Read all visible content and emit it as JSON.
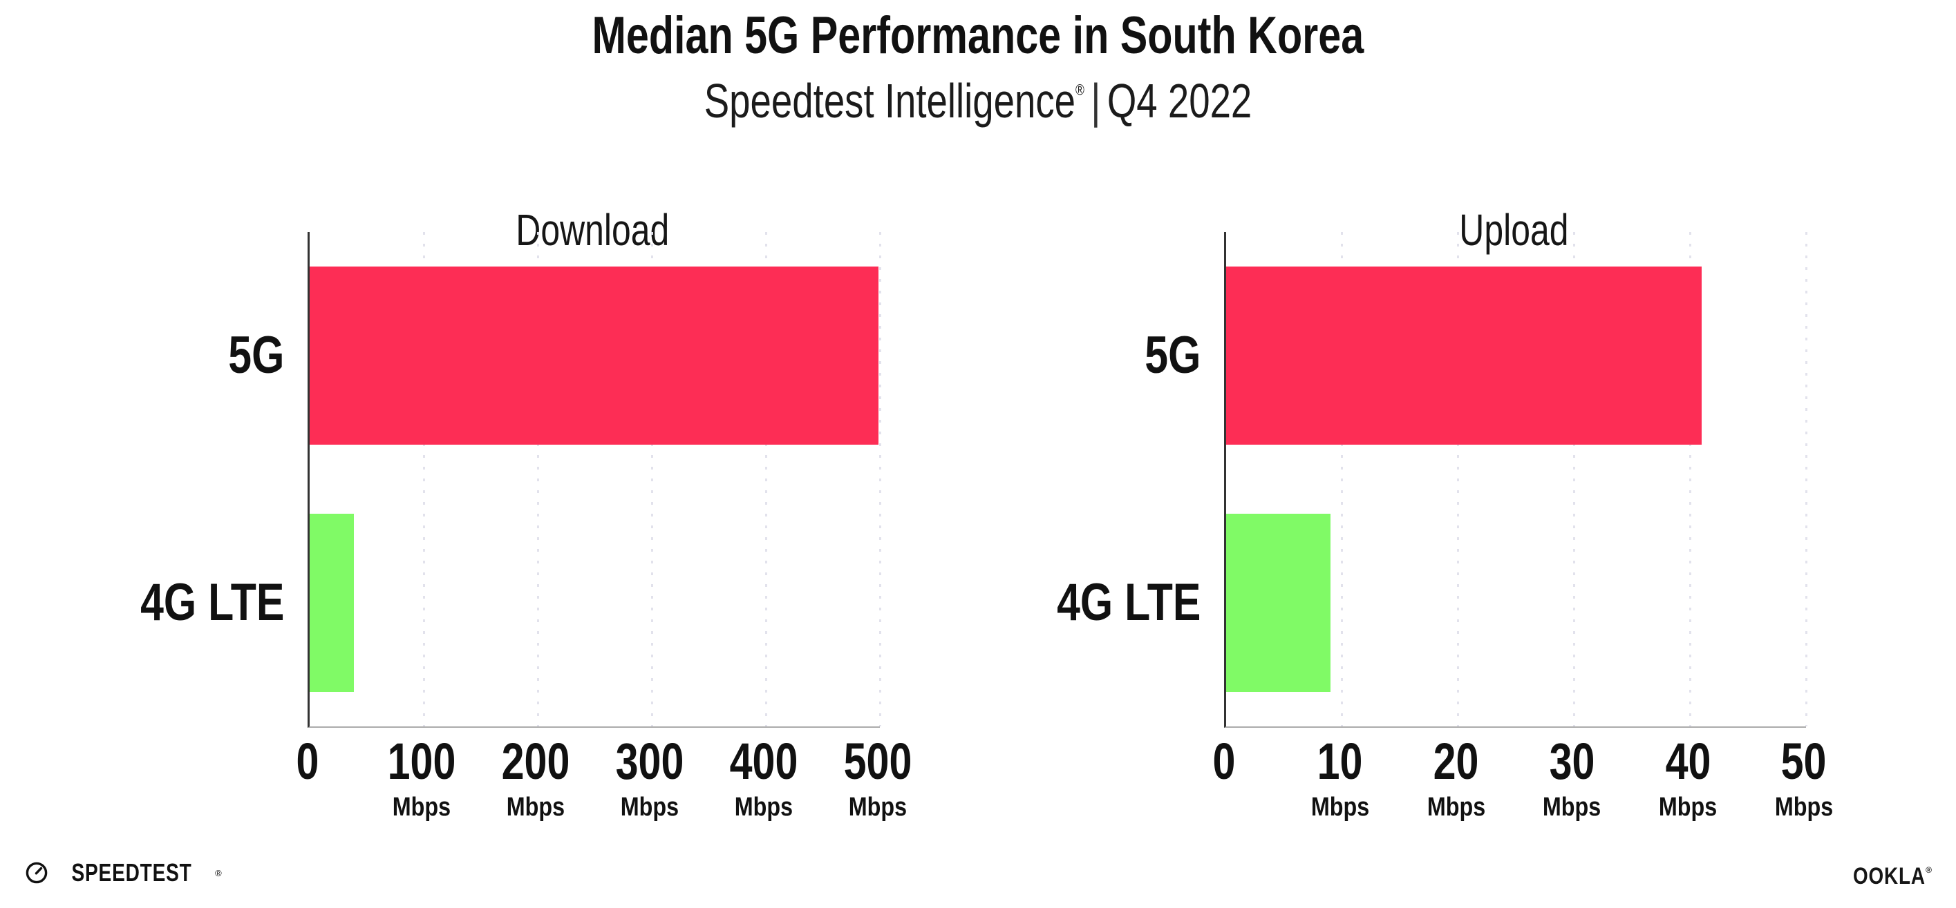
{
  "header": {
    "title": "Median 5G Performance in South Korea",
    "subtitle": {
      "brand": "Speedtest Intelligence",
      "registered": "®",
      "separator": "|",
      "period": "Q4 2022"
    }
  },
  "chart_data": [
    {
      "type": "bar",
      "orientation": "horizontal",
      "title": "Download",
      "categories": [
        "5G",
        "4G LTE"
      ],
      "values": [
        499,
        39
      ],
      "unit": "Mbps",
      "xlim": [
        0,
        500
      ],
      "xticks": [
        0,
        100,
        200,
        300,
        400,
        500
      ],
      "xtick_unit": "Mbps",
      "xtick_unit_on_zero": false,
      "bar_colors": [
        "#FD2D55",
        "#80FA66"
      ],
      "grid": "dotted-vertical",
      "legend": "none"
    },
    {
      "type": "bar",
      "orientation": "horizontal",
      "title": "Upload",
      "categories": [
        "5G",
        "4G LTE"
      ],
      "values": [
        41,
        9
      ],
      "unit": "Mbps",
      "xlim": [
        0,
        50
      ],
      "xticks": [
        0,
        10,
        20,
        30,
        40,
        50
      ],
      "xtick_unit": "Mbps",
      "xtick_unit_on_zero": false,
      "bar_colors": [
        "#FD2D55",
        "#80FA66"
      ],
      "grid": "dotted-vertical",
      "legend": "none"
    }
  ],
  "footer": {
    "speedtest": {
      "text": "SPEEDTEST",
      "mark": "®",
      "icon": "gauge-icon"
    },
    "ookla": {
      "text": "OOKLA",
      "mark": "®"
    }
  },
  "colors": {
    "bar_5g": "#FD2D55",
    "bar_4g_lte": "#80FA66",
    "gridline": "#E2E2EC",
    "axis_spine": "#333333",
    "axis_baseline": "#ABABAB",
    "text": "#111111",
    "background": "#FFFFFF"
  }
}
